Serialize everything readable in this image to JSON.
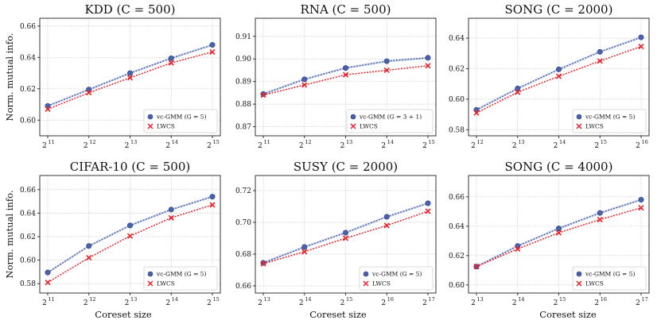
{
  "figure": {
    "ylabel": "Norm. mutual info.",
    "xlabel": "Coreset size"
  },
  "colors": {
    "vc": "#4a62ad",
    "lwcs": "#e8232b",
    "grid": "#c8c8c8"
  },
  "chart_data": [
    {
      "type": "line",
      "title": "KDD (C = 500)",
      "x_exponents": [
        11,
        12,
        13,
        14,
        15
      ],
      "x_base": "2",
      "ylim": [
        0.59,
        0.665
      ],
      "yticks": [
        "0.60",
        "0.62",
        "0.64",
        "0.66"
      ],
      "ytick_values": [
        0.6,
        0.62,
        0.64,
        0.66
      ],
      "grid": true,
      "legend_position": "lower-right",
      "series": [
        {
          "name": "vc-GMM (G = 5)",
          "marker": "circle",
          "values": [
            0.609,
            0.6195,
            0.63,
            0.6395,
            0.648
          ]
        },
        {
          "name": "LWCS",
          "marker": "x",
          "values": [
            0.607,
            0.6175,
            0.627,
            0.6365,
            0.6435
          ]
        }
      ]
    },
    {
      "type": "line",
      "title": "RNA (C = 500)",
      "x_exponents": [
        11,
        12,
        13,
        14,
        15
      ],
      "x_base": "2",
      "ylim": [
        0.866,
        0.918
      ],
      "yticks": [
        "0.87",
        "0.88",
        "0.89",
        "0.90",
        "0.91"
      ],
      "ytick_values": [
        0.87,
        0.88,
        0.89,
        0.9,
        0.91
      ],
      "grid": true,
      "legend_position": "lower-right",
      "series": [
        {
          "name": "vc-GMM (G = 3 + 1)",
          "marker": "circle",
          "values": [
            0.8845,
            0.891,
            0.896,
            0.899,
            0.9005
          ]
        },
        {
          "name": "LWCS",
          "marker": "x",
          "values": [
            0.884,
            0.8885,
            0.893,
            0.895,
            0.897
          ]
        }
      ]
    },
    {
      "type": "line",
      "title": "SONG (C = 2000)",
      "x_exponents": [
        12,
        13,
        14,
        15,
        16
      ],
      "x_base": "2",
      "ylim": [
        0.576,
        0.653
      ],
      "yticks": [
        "0.58",
        "0.60",
        "0.62",
        "0.64"
      ],
      "ytick_values": [
        0.58,
        0.6,
        0.62,
        0.64
      ],
      "grid": true,
      "legend_position": "lower-right",
      "series": [
        {
          "name": "vc-GMM (G = 5)",
          "marker": "circle",
          "values": [
            0.593,
            0.607,
            0.6195,
            0.631,
            0.6405
          ]
        },
        {
          "name": "LWCS",
          "marker": "x",
          "values": [
            0.591,
            0.6045,
            0.615,
            0.625,
            0.6345
          ]
        }
      ]
    },
    {
      "type": "line",
      "title": "CIFAR-10 (C = 500)",
      "x_exponents": [
        11,
        12,
        13,
        14,
        15
      ],
      "x_base": "2",
      "ylim": [
        0.572,
        0.672
      ],
      "yticks": [
        "0.58",
        "0.60",
        "0.62",
        "0.64",
        "0.66"
      ],
      "ytick_values": [
        0.58,
        0.6,
        0.62,
        0.64,
        0.66
      ],
      "grid": true,
      "legend_position": "lower-right",
      "series": [
        {
          "name": "vc-GMM (G = 5)",
          "marker": "circle",
          "values": [
            0.5895,
            0.612,
            0.6295,
            0.643,
            0.654
          ]
        },
        {
          "name": "LWCS",
          "marker": "x",
          "values": [
            0.581,
            0.602,
            0.6205,
            0.636,
            0.647
          ]
        }
      ]
    },
    {
      "type": "line",
      "title": "SUSY (C = 2000)",
      "x_exponents": [
        13,
        14,
        15,
        16,
        17
      ],
      "x_base": "2",
      "ylim": [
        0.6555,
        0.7295
      ],
      "yticks": [
        "0.66",
        "0.68",
        "0.70",
        "0.72"
      ],
      "ytick_values": [
        0.66,
        0.68,
        0.7,
        0.72
      ],
      "grid": true,
      "legend_position": "lower-right",
      "series": [
        {
          "name": "vc-GMM (G = 5)",
          "marker": "circle",
          "values": [
            0.6745,
            0.6845,
            0.6935,
            0.7035,
            0.712
          ]
        },
        {
          "name": "LWCS",
          "marker": "x",
          "values": [
            0.674,
            0.6815,
            0.69,
            0.698,
            0.707
          ]
        }
      ]
    },
    {
      "type": "line",
      "title": "SONG (C = 4000)",
      "x_exponents": [
        13,
        14,
        15,
        16,
        17
      ],
      "x_base": "2",
      "ylim": [
        0.5945,
        0.6745
      ],
      "yticks": [
        "0.60",
        "0.62",
        "0.64",
        "0.66"
      ],
      "ytick_values": [
        0.6,
        0.62,
        0.64,
        0.66
      ],
      "grid": true,
      "legend_position": "lower-right",
      "series": [
        {
          "name": "vc-GMM (G = 5)",
          "marker": "circle",
          "values": [
            0.6125,
            0.6265,
            0.6385,
            0.649,
            0.658
          ]
        },
        {
          "name": "LWCS",
          "marker": "x",
          "values": [
            0.6125,
            0.6245,
            0.6355,
            0.6445,
            0.6525
          ]
        }
      ]
    }
  ]
}
